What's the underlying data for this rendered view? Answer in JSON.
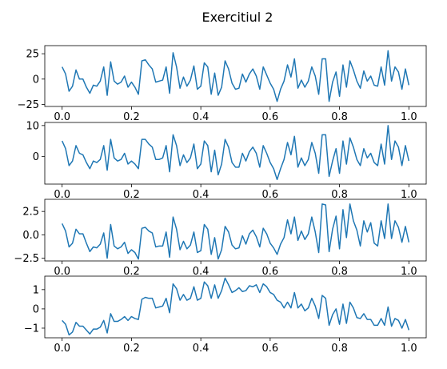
{
  "figure": {
    "title": "Exercitiul 2"
  },
  "chart_data": [
    {
      "type": "line",
      "color": "#1f77b4",
      "xlim": [
        -0.05,
        1.05
      ],
      "ylim": [
        -27,
        33
      ],
      "xticks": [
        "0.0",
        "0.2",
        "0.4",
        "0.6",
        "0.8",
        "1.0"
      ],
      "xtick_values": [
        0.0,
        0.2,
        0.4,
        0.6,
        0.8,
        1.0
      ],
      "yticks": [
        "25",
        "0",
        "−25"
      ],
      "ytick_values": [
        25,
        0,
        -25
      ],
      "series": [
        {
          "x": [
            0.0,
            0.01,
            0.02,
            0.03,
            0.04,
            0.05,
            0.06,
            0.07,
            0.08,
            0.09,
            0.1,
            0.11,
            0.12,
            0.13,
            0.14,
            0.15,
            0.16,
            0.17,
            0.18,
            0.19,
            0.2,
            0.21,
            0.22,
            0.23,
            0.24,
            0.25,
            0.26,
            0.27,
            0.28,
            0.29,
            0.3,
            0.31,
            0.32,
            0.33,
            0.34,
            0.35,
            0.36,
            0.37,
            0.38,
            0.39,
            0.4,
            0.41,
            0.42,
            0.43,
            0.44,
            0.45,
            0.46,
            0.47,
            0.48,
            0.49,
            0.5,
            0.51,
            0.52,
            0.53,
            0.54,
            0.55,
            0.56,
            0.57,
            0.58,
            0.59,
            0.6,
            0.61,
            0.62,
            0.63,
            0.64,
            0.65,
            0.66,
            0.67,
            0.68,
            0.69,
            0.7,
            0.71,
            0.72,
            0.73,
            0.74,
            0.75,
            0.76,
            0.77,
            0.78,
            0.79,
            0.8,
            0.81,
            0.82,
            0.83,
            0.84,
            0.85,
            0.86,
            0.87,
            0.88,
            0.89,
            0.9,
            0.91,
            0.92,
            0.93,
            0.94,
            0.95,
            0.96,
            0.97,
            0.98,
            0.99,
            1.0
          ],
          "y": [
            12,
            5,
            -12,
            -7,
            9,
            0,
            0,
            -8,
            -14,
            -6,
            -7,
            -2,
            12,
            -16,
            17,
            -2,
            -5,
            -3,
            3,
            -8,
            -3,
            -8,
            -15,
            18,
            19,
            14,
            10,
            -3,
            -2,
            -1,
            12,
            -14,
            26,
            12,
            -9,
            2,
            -7,
            -1,
            13,
            -10,
            -7,
            16,
            12,
            -15,
            6,
            -16,
            -8,
            18,
            10,
            -4,
            -10,
            -9,
            5,
            -3,
            5,
            10,
            3,
            -10,
            12,
            4,
            -4,
            -10,
            -22,
            -10,
            -2,
            14,
            2,
            20,
            -9,
            -1,
            -8,
            -2,
            12,
            3,
            -15,
            20,
            20,
            -22,
            -3,
            7,
            -17,
            14,
            -8,
            18,
            9,
            -2,
            -9,
            8,
            -2,
            3,
            -6,
            -7,
            12,
            -6,
            28,
            -2,
            12,
            7,
            -10,
            10,
            -6
          ]
        }
      ]
    },
    {
      "type": "line",
      "color": "#1f77b4",
      "xlim": [
        -0.05,
        1.05
      ],
      "ylim": [
        -9,
        11
      ],
      "xticks": [
        "0.0",
        "0.2",
        "0.4",
        "0.6",
        "0.8",
        "1.0"
      ],
      "xtick_values": [
        0.0,
        0.2,
        0.4,
        0.6,
        0.8,
        1.0
      ],
      "yticks": [
        "10",
        "0"
      ],
      "ytick_values": [
        10,
        0
      ],
      "series": [
        {
          "x": [
            0.0,
            0.01,
            0.02,
            0.03,
            0.04,
            0.05,
            0.06,
            0.07,
            0.08,
            0.09,
            0.1,
            0.11,
            0.12,
            0.13,
            0.14,
            0.15,
            0.16,
            0.17,
            0.18,
            0.19,
            0.2,
            0.21,
            0.22,
            0.23,
            0.24,
            0.25,
            0.26,
            0.27,
            0.28,
            0.29,
            0.3,
            0.31,
            0.32,
            0.33,
            0.34,
            0.35,
            0.36,
            0.37,
            0.38,
            0.39,
            0.4,
            0.41,
            0.42,
            0.43,
            0.44,
            0.45,
            0.46,
            0.47,
            0.48,
            0.49,
            0.5,
            0.51,
            0.52,
            0.53,
            0.54,
            0.55,
            0.56,
            0.57,
            0.58,
            0.59,
            0.6,
            0.61,
            0.62,
            0.63,
            0.64,
            0.65,
            0.66,
            0.67,
            0.68,
            0.69,
            0.7,
            0.71,
            0.72,
            0.73,
            0.74,
            0.75,
            0.76,
            0.77,
            0.78,
            0.79,
            0.8,
            0.81,
            0.82,
            0.83,
            0.84,
            0.85,
            0.86,
            0.87,
            0.88,
            0.89,
            0.9,
            0.91,
            0.92,
            0.93,
            0.94,
            0.95,
            0.96,
            0.97,
            0.98,
            0.99,
            1.0
          ],
          "y": [
            5,
            2.5,
            -3,
            -1.5,
            3.5,
            1,
            0.5,
            -2,
            -4,
            -1.5,
            -2,
            -1,
            3.5,
            -4.5,
            5.5,
            -0.5,
            -1.5,
            -1,
            1,
            -2.5,
            -1.5,
            -2.5,
            -4,
            5.5,
            5.5,
            4,
            3,
            -1,
            -1,
            -0.5,
            3.5,
            -5,
            7,
            3.5,
            -3,
            0.5,
            -2,
            -0.5,
            4,
            -4,
            -2.5,
            5,
            3.5,
            -5,
            2,
            -6,
            -2.5,
            5.5,
            3,
            -2,
            -3.5,
            -3.5,
            1,
            -1.5,
            1.5,
            3,
            1,
            -3.5,
            3.5,
            1,
            -2,
            -4,
            -7.5,
            -4,
            -1,
            4.5,
            0.5,
            6.5,
            -3.5,
            -0.5,
            -3,
            -1,
            4.5,
            1,
            -5.5,
            7,
            7,
            -6.5,
            -1.5,
            2.5,
            -5.5,
            5,
            -2.5,
            6,
            3,
            -1,
            -3,
            2.5,
            -0.5,
            1,
            -2,
            -3,
            4,
            -2.5,
            10,
            -1,
            5,
            3,
            -3,
            3.5,
            -1.5
          ]
        }
      ]
    },
    {
      "type": "line",
      "color": "#1f77b4",
      "xlim": [
        -0.05,
        1.05
      ],
      "ylim": [
        -2.8,
        3.8
      ],
      "xticks": [
        "0.0",
        "0.2",
        "0.4",
        "0.6",
        "0.8",
        "1.0"
      ],
      "xtick_values": [
        0.0,
        0.2,
        0.4,
        0.6,
        0.8,
        1.0
      ],
      "yticks": [
        "2.5",
        "0.0",
        "−2.5"
      ],
      "ytick_values": [
        2.5,
        0.0,
        -2.5
      ],
      "series": [
        {
          "x": [
            0.0,
            0.01,
            0.02,
            0.03,
            0.04,
            0.05,
            0.06,
            0.07,
            0.08,
            0.09,
            0.1,
            0.11,
            0.12,
            0.13,
            0.14,
            0.15,
            0.16,
            0.17,
            0.18,
            0.19,
            0.2,
            0.21,
            0.22,
            0.23,
            0.24,
            0.25,
            0.26,
            0.27,
            0.28,
            0.29,
            0.3,
            0.31,
            0.32,
            0.33,
            0.34,
            0.35,
            0.36,
            0.37,
            0.38,
            0.39,
            0.4,
            0.41,
            0.42,
            0.43,
            0.44,
            0.45,
            0.46,
            0.47,
            0.48,
            0.49,
            0.5,
            0.51,
            0.52,
            0.53,
            0.54,
            0.55,
            0.56,
            0.57,
            0.58,
            0.59,
            0.6,
            0.61,
            0.62,
            0.63,
            0.64,
            0.65,
            0.66,
            0.67,
            0.68,
            0.69,
            0.7,
            0.71,
            0.72,
            0.73,
            0.74,
            0.75,
            0.76,
            0.77,
            0.78,
            0.79,
            0.8,
            0.81,
            0.82,
            0.83,
            0.84,
            0.85,
            0.86,
            0.87,
            0.88,
            0.89,
            0.9,
            0.91,
            0.92,
            0.93,
            0.94,
            0.95,
            0.96,
            0.97,
            0.98,
            0.99,
            1.0
          ],
          "y": [
            1.2,
            0.4,
            -1.3,
            -0.9,
            0.6,
            0.1,
            0.1,
            -0.9,
            -1.8,
            -1.3,
            -1.4,
            -1,
            0.2,
            -2.5,
            1.1,
            -1.2,
            -1.5,
            -1.3,
            -0.8,
            -2,
            -1.6,
            -1.9,
            -2.6,
            0.7,
            0.8,
            0.4,
            0.2,
            -1.3,
            -1.2,
            -1.2,
            0.3,
            -2.4,
            1.9,
            0.6,
            -1.6,
            -0.7,
            -1.5,
            -1.1,
            0.3,
            -1.9,
            -1.7,
            1.1,
            0.6,
            -2.1,
            -0.3,
            -2.6,
            -1.6,
            0.9,
            0.3,
            -1.1,
            -1.5,
            -1.4,
            -0.1,
            -1,
            0.1,
            0.5,
            -0.2,
            -1.3,
            0.7,
            0.1,
            -0.9,
            -1.4,
            -2.1,
            -1,
            -0.3,
            1.6,
            0.1,
            1.9,
            -0.6,
            0.4,
            -0.5,
            0.1,
            1.9,
            0.3,
            -1.9,
            3.3,
            3.2,
            -1.8,
            0.6,
            2,
            -1.5,
            2.7,
            -0.3,
            3.3,
            1.5,
            0.5,
            -1.2,
            1.5,
            0.3,
            1.3,
            -0.9,
            -1.2,
            1.5,
            -0.4,
            3.3,
            -0.4,
            1.5,
            0.8,
            -0.8,
            0.9,
            -0.8
          ]
        }
      ]
    },
    {
      "type": "line",
      "color": "#1f77b4",
      "xlim": [
        -0.05,
        1.05
      ],
      "ylim": [
        -1.5,
        1.7
      ],
      "xticks": [
        "0.0",
        "0.2",
        "0.4",
        "0.6",
        "0.8",
        "1.0"
      ],
      "xtick_values": [
        0.0,
        0.2,
        0.4,
        0.6,
        0.8,
        1.0
      ],
      "yticks": [
        "1",
        "0",
        "−1"
      ],
      "ytick_values": [
        1,
        0,
        -1
      ],
      "series": [
        {
          "x": [
            0.0,
            0.01,
            0.02,
            0.03,
            0.04,
            0.05,
            0.06,
            0.07,
            0.08,
            0.09,
            0.1,
            0.11,
            0.12,
            0.13,
            0.14,
            0.15,
            0.16,
            0.17,
            0.18,
            0.19,
            0.2,
            0.21,
            0.22,
            0.23,
            0.24,
            0.25,
            0.26,
            0.27,
            0.28,
            0.29,
            0.3,
            0.31,
            0.32,
            0.33,
            0.34,
            0.35,
            0.36,
            0.37,
            0.38,
            0.39,
            0.4,
            0.41,
            0.42,
            0.43,
            0.44,
            0.45,
            0.46,
            0.47,
            0.48,
            0.49,
            0.5,
            0.51,
            0.52,
            0.53,
            0.54,
            0.55,
            0.56,
            0.57,
            0.58,
            0.59,
            0.6,
            0.61,
            0.62,
            0.63,
            0.64,
            0.65,
            0.66,
            0.67,
            0.68,
            0.69,
            0.7,
            0.71,
            0.72,
            0.73,
            0.74,
            0.75,
            0.76,
            0.77,
            0.78,
            0.79,
            0.8,
            0.81,
            0.82,
            0.83,
            0.84,
            0.85,
            0.86,
            0.87,
            0.88,
            0.89,
            0.9,
            0.91,
            0.92,
            0.93,
            0.94,
            0.95,
            0.96,
            0.97,
            0.98,
            0.99,
            1.0
          ],
          "y": [
            -0.6,
            -0.8,
            -1.35,
            -1.2,
            -0.7,
            -0.9,
            -0.9,
            -1.1,
            -1.3,
            -1.05,
            -1.05,
            -0.95,
            -0.6,
            -1.25,
            -0.25,
            -0.65,
            -0.65,
            -0.55,
            -0.4,
            -0.6,
            -0.4,
            -0.5,
            -0.55,
            0.5,
            0.6,
            0.55,
            0.55,
            0.05,
            0.1,
            0.15,
            0.55,
            -0.2,
            1.3,
            1.05,
            0.45,
            0.75,
            0.45,
            0.55,
            1.15,
            0.45,
            0.55,
            1.4,
            1.2,
            0.55,
            1.25,
            0.55,
            0.95,
            1.6,
            1.25,
            0.85,
            0.95,
            1.1,
            0.9,
            0.95,
            1.2,
            1.15,
            1.25,
            0.85,
            1.3,
            1.15,
            0.85,
            0.75,
            0.45,
            0.35,
            0.05,
            0.35,
            0.05,
            0.85,
            0.05,
            0.25,
            -0.1,
            0.05,
            0.55,
            0.15,
            -0.5,
            0.7,
            0.55,
            -0.85,
            -0.3,
            0.0,
            -0.8,
            0.25,
            -0.75,
            0.35,
            0.05,
            -0.45,
            -0.5,
            -0.25,
            -0.55,
            -0.55,
            -0.85,
            -0.85,
            -0.5,
            -0.85,
            0.1,
            -0.9,
            -0.5,
            -0.6,
            -1.0,
            -0.55,
            -1.1
          ]
        }
      ]
    }
  ]
}
